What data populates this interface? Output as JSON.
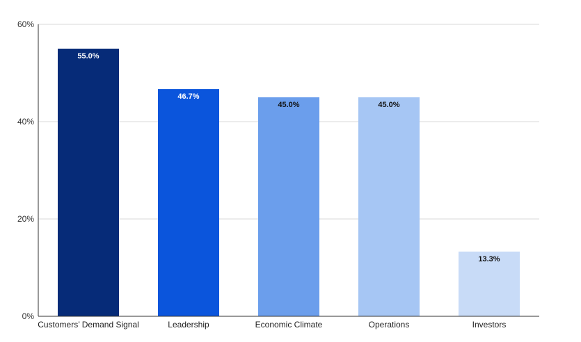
{
  "chart_data": {
    "type": "bar",
    "title": "",
    "xlabel": "",
    "ylabel": "",
    "categories": [
      "Customers’ Demand Signal",
      "Leadership",
      "Economic Climate",
      "Operations",
      "Investors"
    ],
    "values": [
      55.0,
      46.7,
      45.0,
      45.0,
      13.3
    ],
    "data_labels": [
      "55.0%",
      "46.7%",
      "45.0%",
      "45.0%",
      "13.3%"
    ],
    "ylim": [
      0,
      60
    ],
    "yticks": [
      0,
      20,
      40,
      60
    ],
    "ytick_labels": [
      "0%",
      "20%",
      "40%",
      "60%"
    ],
    "grid": true,
    "legend": "none",
    "bar_colors": [
      "#062b78",
      "#0b55dc",
      "#6b9eec",
      "#a6c6f4",
      "#c8dbf7"
    ],
    "label_colors": [
      "#ffffff",
      "#ffffff",
      "#111111",
      "#111111",
      "#111111"
    ],
    "grid_color": "#d9d9d9",
    "axis_color": "#333333"
  }
}
